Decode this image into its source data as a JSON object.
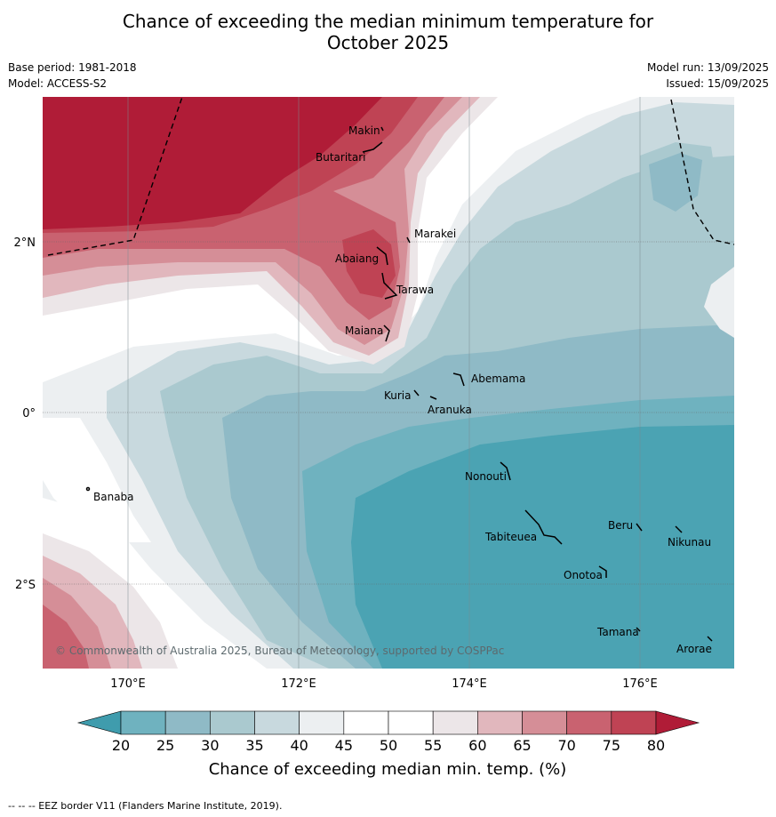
{
  "title_line1": "Chance of exceeding the median minimum temperature for",
  "title_line2": "October 2025",
  "base_period": "Base period: 1981-2018",
  "model": "Model: ACCESS-S2",
  "model_run": "Model run: 13/09/2025",
  "issued": "Issued: 15/09/2025",
  "copyright": "© Commonwealth of Australia 2025, Bureau of Meteorology, supported by COSPPac",
  "lat_ticks": [
    "2°N",
    "0°",
    "2°S"
  ],
  "lon_ticks": [
    "170°E",
    "172°E",
    "174°E",
    "176°E"
  ],
  "places": [
    "Makin",
    "Butaritari",
    "Marakei",
    "Abaiang",
    "Tarawa",
    "Maiana",
    "Abemama",
    "Kuria",
    "Aranuka",
    "Banaba",
    "Nonouti",
    "Beru",
    "Nikunau",
    "Tabiteuea",
    "Onotoa",
    "Tamana",
    "Arorae"
  ],
  "colorbar": {
    "ticks": [
      "20",
      "25",
      "30",
      "35",
      "40",
      "45",
      "50",
      "55",
      "60",
      "65",
      "70",
      "75",
      "80"
    ],
    "colors": [
      "#3f9cad",
      "#6fb2bf",
      "#8fbac6",
      "#aac9cf",
      "#c8d9de",
      "#eceff1",
      "#ffffff",
      "#ffffff",
      "#ece6e8",
      "#e1b7bd",
      "#d58e97",
      "#c96270",
      "#bf4354",
      "#b01c37"
    ],
    "label": "Chance of exceeding median min. temp. (%)"
  },
  "footer": "--  --  -- EEZ border V11 (Flanders Marine Institute, 2019)."
}
